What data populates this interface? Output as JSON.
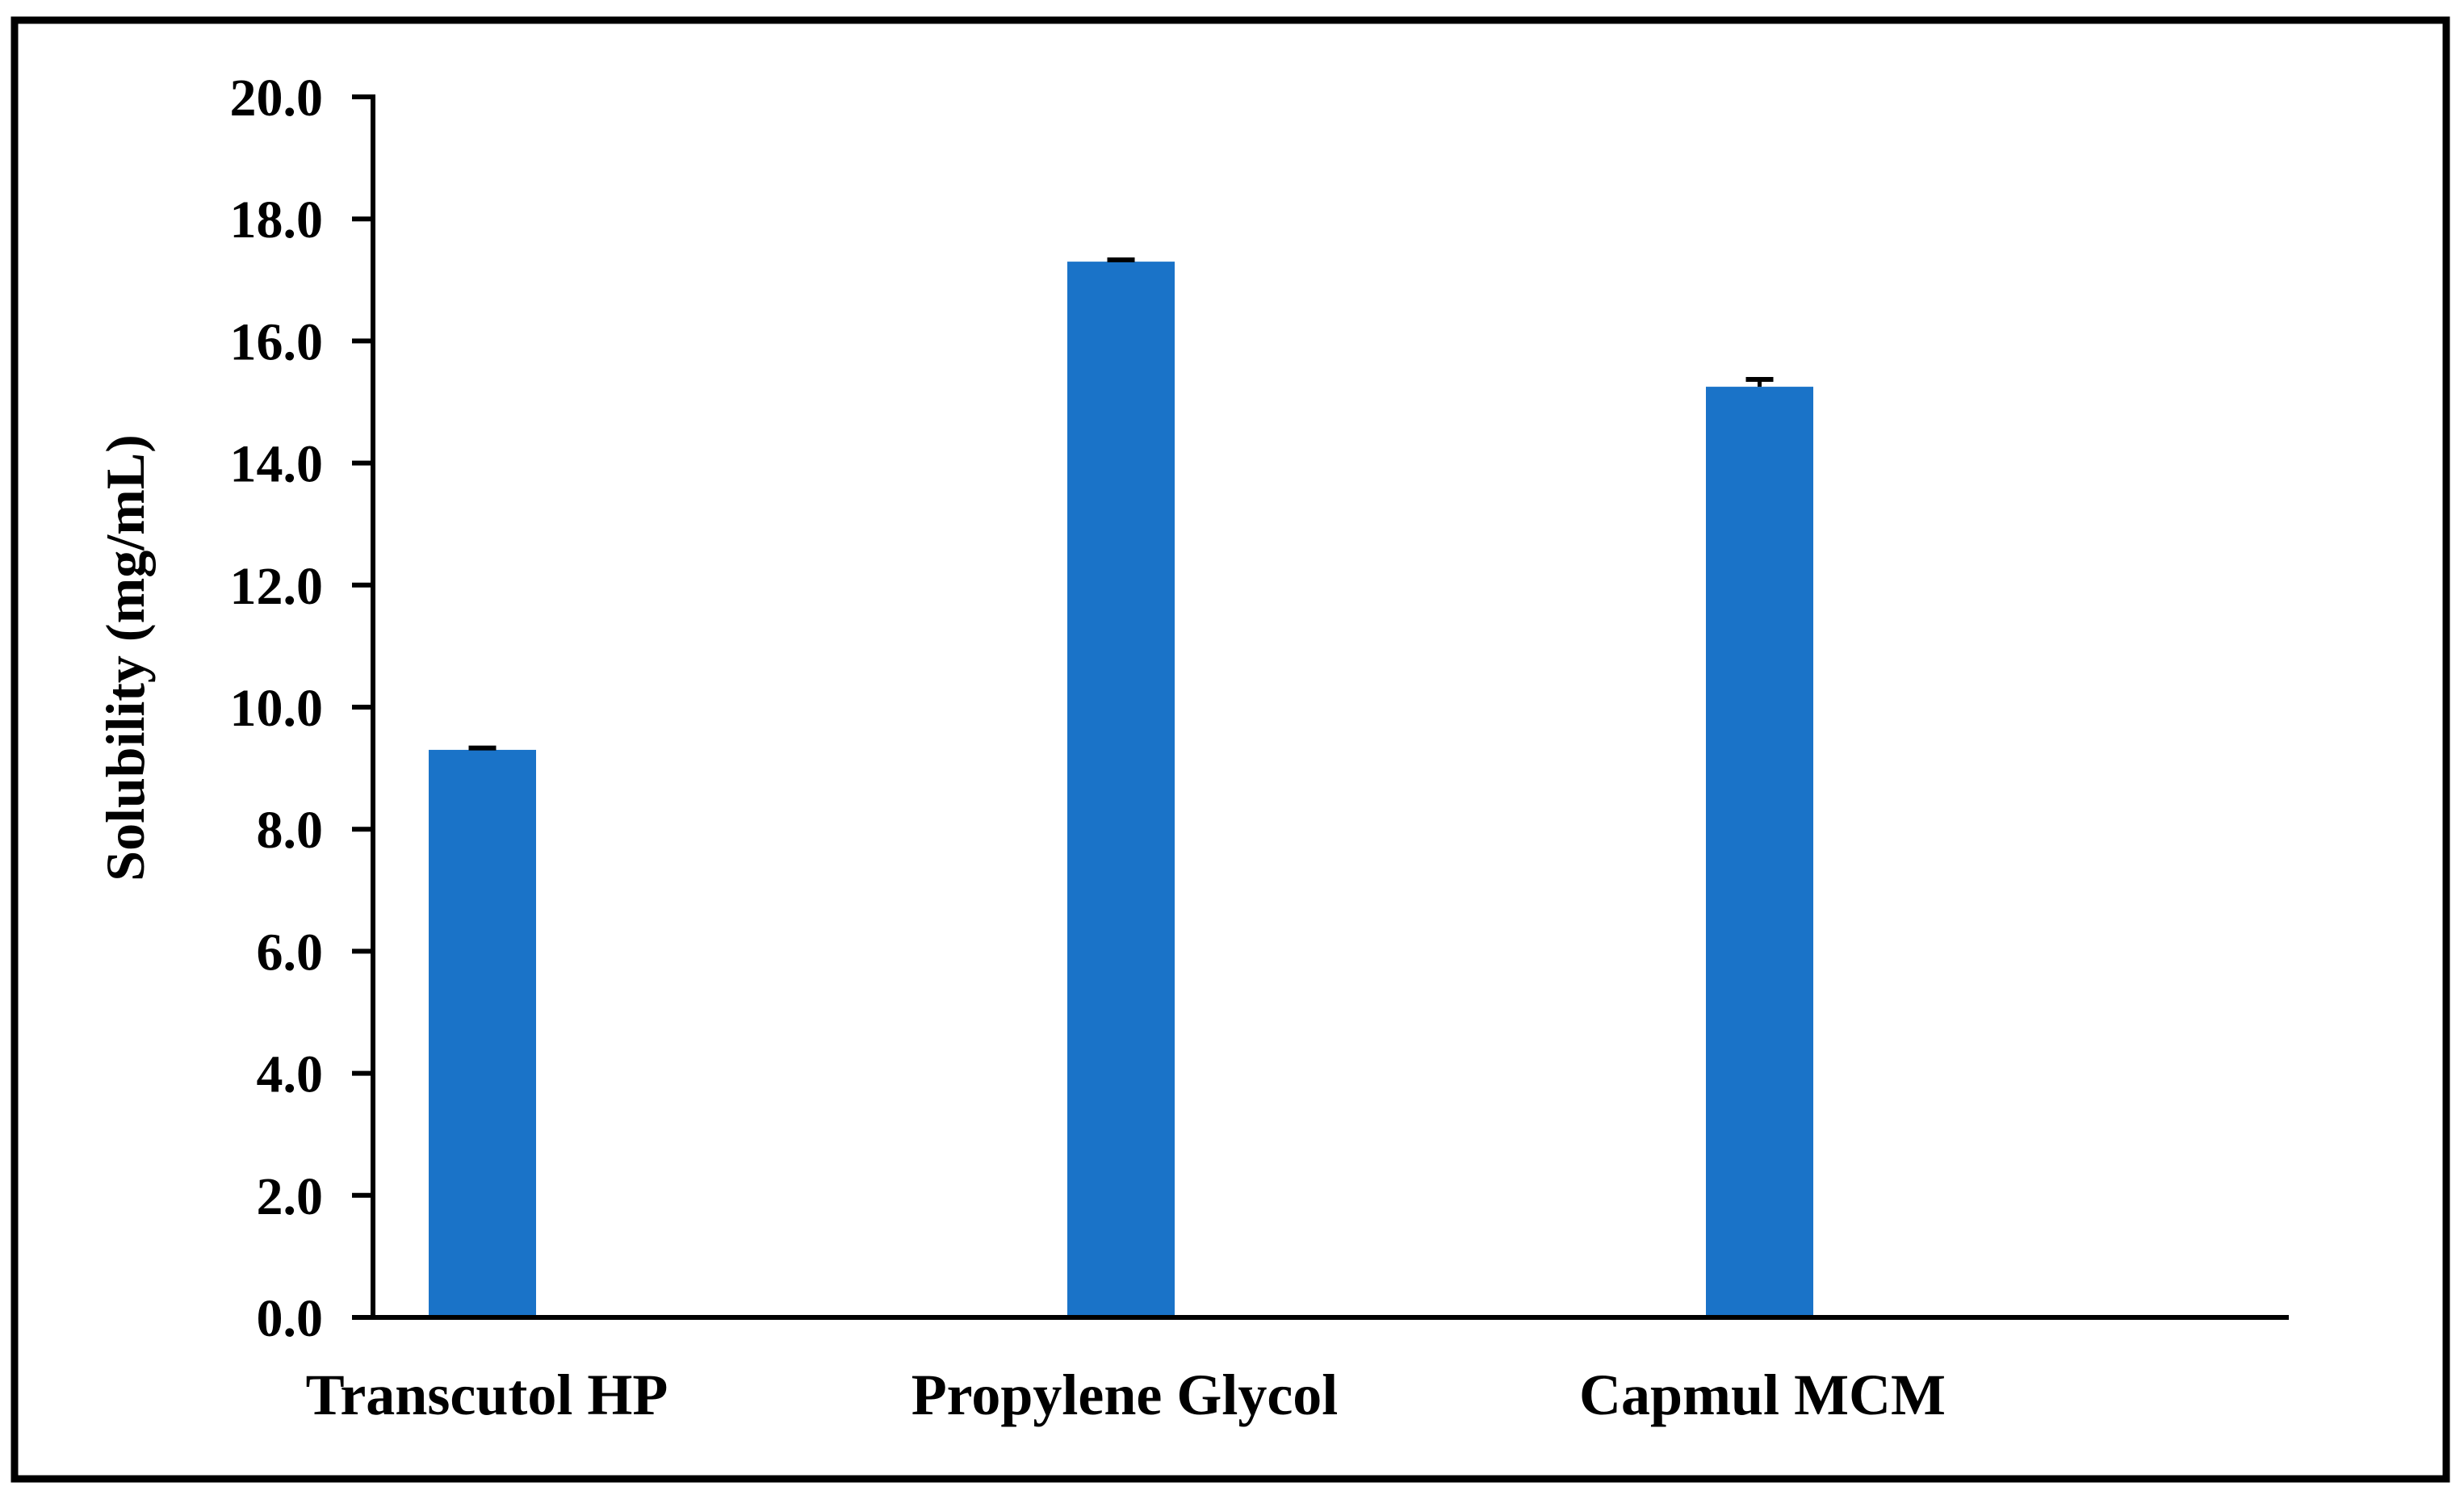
{
  "chart_data": {
    "type": "bar",
    "title": "",
    "xlabel": "",
    "ylabel": "Solubility (mg/mL)",
    "ylim": [
      0,
      20
    ],
    "yticks": [
      "0.0",
      "2.0",
      "4.0",
      "6.0",
      "8.0",
      "10.0",
      "12.0",
      "14.0",
      "16.0",
      "18.0",
      "20.0"
    ],
    "categories": [
      "Transcutol HP",
      "Propylene Glycol",
      "Capmul MCM"
    ],
    "values": [
      9.3,
      17.3,
      15.25
    ],
    "errors": [
      0.03,
      0.03,
      0.12
    ],
    "grid": false,
    "legend": "none",
    "colors": {
      "bar": "#1a73c8",
      "axis": "#000000",
      "border": "#000000"
    }
  }
}
